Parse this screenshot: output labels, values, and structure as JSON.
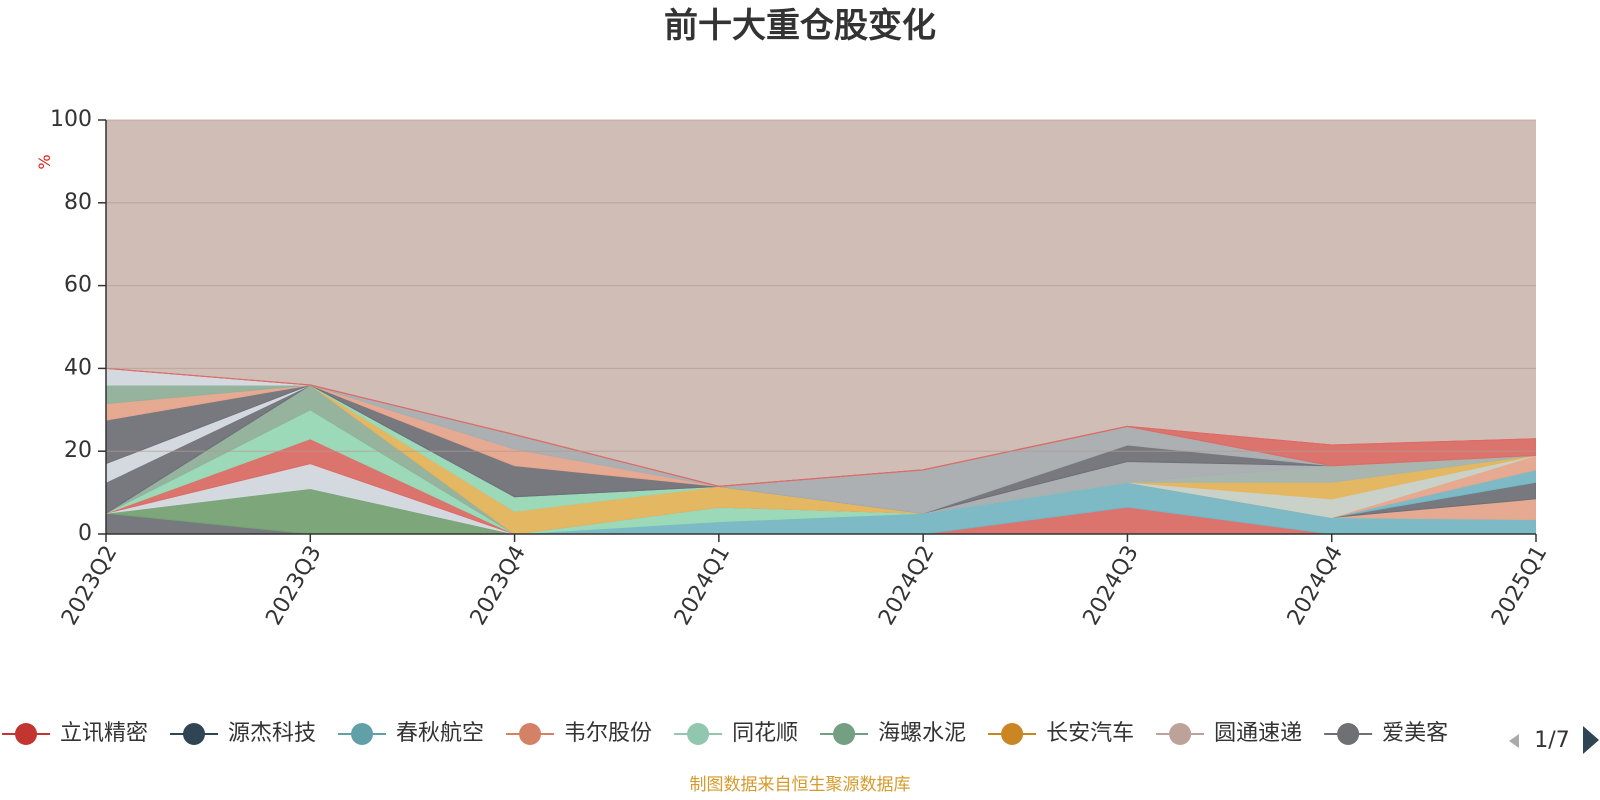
{
  "chart_data": {
    "type": "area",
    "stacked": true,
    "title": "前十大重仓股变化",
    "unit": "%",
    "xlabel": "",
    "ylabel": "",
    "ylim": [
      0,
      100
    ],
    "yticks": [
      0,
      20,
      40,
      60,
      80,
      100
    ],
    "grid": true,
    "categories": [
      "2023Q2",
      "2023Q3",
      "2023Q4",
      "2024Q1",
      "2024Q2",
      "2024Q3",
      "2024Q4",
      "2025Q1"
    ],
    "series": [
      {
        "name": "",
        "color": "#6e7079",
        "values": [
          5,
          0,
          0,
          0,
          0,
          0,
          0,
          0
        ]
      },
      {
        "name": "",
        "color": "#73a373",
        "values": [
          0,
          11,
          0,
          0,
          0,
          0,
          0,
          0
        ]
      },
      {
        "name": "",
        "color": "#d4dbe3",
        "values": [
          0,
          6,
          0,
          0,
          0,
          0,
          0,
          0
        ]
      },
      {
        "name": "",
        "color": "#dd6b66",
        "values": [
          0,
          6,
          0,
          0,
          0,
          0,
          0,
          0
        ]
      },
      {
        "name": "",
        "color": "#96dbb8",
        "values": [
          0,
          7,
          0,
          0,
          0,
          0,
          0,
          0
        ]
      },
      {
        "name": "",
        "color": "#8fb39a",
        "values": [
          0,
          6,
          0,
          0,
          0,
          0,
          0,
          0
        ]
      },
      {
        "name": "",
        "color": "#dd6b66",
        "values": [
          0,
          0,
          0,
          0,
          0,
          6.5,
          0,
          0
        ]
      },
      {
        "name": "",
        "color": "#73b9c8",
        "values": [
          0,
          0,
          0,
          3,
          5,
          6,
          4,
          3.5
        ]
      },
      {
        "name": "",
        "color": "#96dbb8",
        "values": [
          0,
          0,
          0,
          3.5,
          0,
          0,
          0,
          0
        ]
      },
      {
        "name": "",
        "color": "#e8a68d",
        "values": [
          0,
          0,
          0,
          0,
          0,
          0,
          0,
          5
        ]
      },
      {
        "name": "",
        "color": "#6e7079",
        "values": [
          0,
          0,
          0,
          0,
          0,
          0,
          0,
          4
        ]
      },
      {
        "name": "",
        "color": "#73b9c8",
        "values": [
          0,
          0,
          0,
          0,
          0,
          0,
          0,
          3
        ]
      },
      {
        "name": "",
        "color": "#e8a68d",
        "values": [
          0,
          0,
          0,
          0,
          0,
          0,
          0,
          3.5
        ]
      },
      {
        "name": "",
        "color": "#e6b65a",
        "values": [
          0,
          0,
          5.5,
          5,
          0,
          0,
          0,
          0
        ]
      },
      {
        "name": "",
        "color": "#c9d3cb",
        "values": [
          0,
          0,
          0,
          0,
          0,
          0,
          4.5,
          0
        ]
      },
      {
        "name": "",
        "color": "#e6b65a",
        "values": [
          0,
          0,
          0,
          0,
          0,
          0,
          4,
          0
        ]
      },
      {
        "name": "",
        "color": "#a3b5ae",
        "values": [
          0,
          0,
          0,
          0,
          0,
          0,
          4,
          0
        ]
      },
      {
        "name": "",
        "color": "#96dbb8",
        "values": [
          0,
          0,
          3.5,
          0,
          0,
          0,
          0,
          0
        ]
      },
      {
        "name": "",
        "color": "#a8aeb2",
        "values": [
          0,
          0,
          0,
          0,
          0,
          5,
          0,
          0
        ]
      },
      {
        "name": "",
        "color": "#6e7079",
        "values": [
          0,
          0,
          0,
          0,
          0,
          4,
          0,
          0
        ]
      },
      {
        "name": "",
        "color": "#a8aeb2",
        "values": [
          0,
          0,
          0,
          0,
          10.5,
          4.5,
          0,
          0
        ]
      },
      {
        "name": "",
        "color": "#6e7079",
        "values": [
          0,
          0,
          7.5,
          0,
          0,
          0,
          0,
          0
        ]
      },
      {
        "name": "",
        "color": "#e8a68d",
        "values": [
          0,
          0,
          4,
          0,
          0,
          0,
          0,
          0
        ]
      },
      {
        "name": "",
        "color": "#a8aeb2",
        "values": [
          0,
          0,
          3.5,
          0,
          0,
          0,
          0,
          0
        ]
      },
      {
        "name": "",
        "color": "#73b9c8",
        "values": [
          0,
          0,
          0,
          0,
          0,
          0,
          0,
          0
        ]
      },
      {
        "name": "",
        "color": "#6e7079",
        "values": [
          7.5,
          0,
          0,
          0,
          0,
          0,
          0,
          0
        ]
      },
      {
        "name": "",
        "color": "#d4dbe3",
        "values": [
          4.5,
          0,
          0,
          0,
          0,
          0,
          0,
          0
        ]
      },
      {
        "name": "",
        "color": "#6e7079",
        "values": [
          10.5,
          0,
          0,
          0,
          0,
          0,
          0,
          0
        ]
      },
      {
        "name": "",
        "color": "#e8a68d",
        "values": [
          4,
          0,
          0,
          0,
          0,
          0,
          0,
          0
        ]
      },
      {
        "name": "",
        "color": "#8fb39a",
        "values": [
          4.5,
          0,
          0,
          0,
          0,
          0,
          0,
          0
        ]
      },
      {
        "name": "",
        "color": "#d4dbe3",
        "values": [
          4,
          0,
          0,
          0,
          0,
          0,
          0,
          0
        ]
      },
      {
        "name": "",
        "color": "#dd6b66",
        "values": [
          0,
          0,
          0,
          0,
          0,
          0,
          0,
          0
        ]
      },
      {
        "name": "",
        "color": "#dd6b66",
        "values": [
          0,
          0,
          0,
          0,
          0,
          0,
          5,
          4
        ]
      },
      {
        "name": "",
        "color": "#dd6b66",
        "values": [
          0,
          0,
          0,
          0,
          0,
          0,
          0,
          0
        ]
      }
    ],
    "legend": {
      "position": "bottom",
      "items": [
        {
          "name": "立讯精密",
          "color": "#c23531"
        },
        {
          "name": "源杰科技",
          "color": "#2f4554"
        },
        {
          "name": "春秋航空",
          "color": "#61a0a8"
        },
        {
          "name": "韦尔股份",
          "color": "#d48265"
        },
        {
          "name": "同花顺",
          "color": "#91c7ae"
        },
        {
          "name": "海螺水泥",
          "color": "#749f83"
        },
        {
          "name": "长安汽车",
          "color": "#ca8622"
        },
        {
          "name": "圆通速递",
          "color": "#bda29a"
        },
        {
          "name": "爱美客",
          "color": "#6e7074"
        }
      ]
    },
    "pager": {
      "text": "1/7"
    },
    "source": "制图数据来自恒生聚源数据库",
    "background_color": "#cfbdb6"
  }
}
